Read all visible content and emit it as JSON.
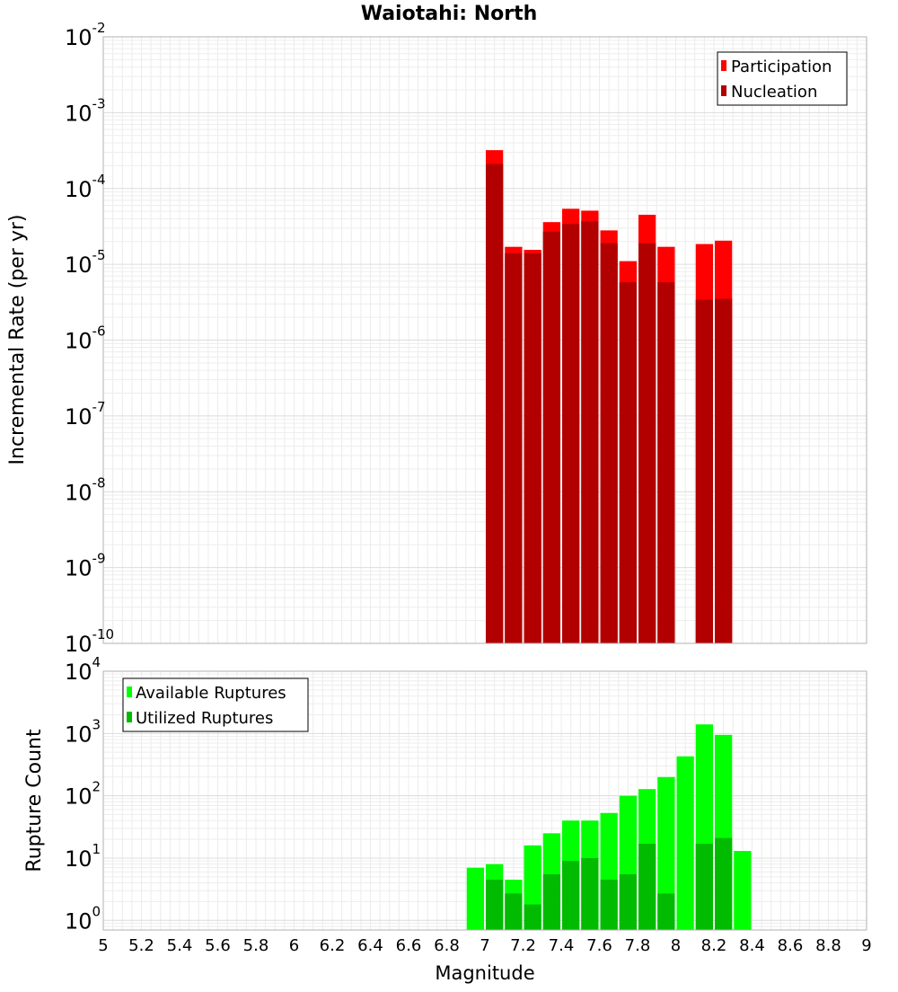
{
  "chart_data": [
    {
      "type": "bar",
      "title": "Waiotahi: North",
      "xlabel": "",
      "ylabel": "Incremental Rate (per yr)",
      "xlim": [
        5,
        9
      ],
      "ylim": [
        1e-10,
        0.01
      ],
      "yscale": "log",
      "grid": true,
      "legend_position": "top-right",
      "bin_width": 0.1,
      "x": [
        7.05,
        7.15,
        7.25,
        7.35,
        7.45,
        7.55,
        7.65,
        7.75,
        7.85,
        7.95,
        8.15,
        8.25
      ],
      "series": [
        {
          "name": "Participation",
          "color": "#ff0000",
          "values": [
            0.00032,
            1.7e-05,
            1.55e-05,
            3.6e-05,
            5.4e-05,
            5.1e-05,
            2.8e-05,
            1.1e-05,
            4.5e-05,
            1.7e-05,
            1.85e-05,
            2.05e-05
          ]
        },
        {
          "name": "Nucleation",
          "color": "#b20000",
          "values": [
            0.00021,
            1.4e-05,
            1.4e-05,
            2.7e-05,
            3.4e-05,
            3.7e-05,
            1.9e-05,
            5.8e-06,
            1.9e-05,
            5.8e-06,
            3.4e-06,
            3.5e-06
          ]
        }
      ]
    },
    {
      "type": "bar",
      "title": "",
      "xlabel": "Magnitude",
      "ylabel": "Rupture Count",
      "xlim": [
        5,
        9
      ],
      "ylim": [
        0.7,
        10000.0
      ],
      "yscale": "log",
      "grid": true,
      "legend_position": "top-left",
      "bin_width": 0.1,
      "x": [
        6.95,
        7.05,
        7.15,
        7.25,
        7.35,
        7.45,
        7.55,
        7.65,
        7.75,
        7.85,
        7.95,
        8.05,
        8.15,
        8.25,
        8.35
      ],
      "series": [
        {
          "name": "Available Ruptures",
          "color": "#00ff00",
          "values": [
            7,
            8,
            4.5,
            16,
            25,
            40,
            40,
            53,
            100,
            128,
            200,
            430,
            1400,
            950,
            13
          ]
        },
        {
          "name": "Utilized Ruptures",
          "color": "#00bb00",
          "values": [
            null,
            4.5,
            2.7,
            1.8,
            5.5,
            9,
            10,
            4.5,
            5.5,
            17,
            2.7,
            null,
            17,
            21,
            null
          ]
        }
      ]
    }
  ],
  "axes": {
    "x_ticks": [
      "5",
      "5.2",
      "5.4",
      "5.6",
      "5.8",
      "6",
      "6.2",
      "6.4",
      "6.6",
      "6.8",
      "7",
      "7.2",
      "7.4",
      "7.6",
      "7.8",
      "8",
      "8.2",
      "8.4",
      "8.6",
      "8.8",
      "9"
    ],
    "top_y_ticks": [
      {
        "base": "10",
        "exp": "-2"
      },
      {
        "base": "10",
        "exp": "-3"
      },
      {
        "base": "10",
        "exp": "-4"
      },
      {
        "base": "10",
        "exp": "-5"
      },
      {
        "base": "10",
        "exp": "-6"
      },
      {
        "base": "10",
        "exp": "-7"
      },
      {
        "base": "10",
        "exp": "-8"
      },
      {
        "base": "10",
        "exp": "-9"
      },
      {
        "base": "10",
        "exp": "-10"
      }
    ],
    "bottom_y_ticks": [
      {
        "base": "10",
        "exp": "4"
      },
      {
        "base": "10",
        "exp": "3"
      },
      {
        "base": "10",
        "exp": "2"
      },
      {
        "base": "10",
        "exp": "1"
      },
      {
        "base": "10",
        "exp": "0"
      }
    ]
  }
}
